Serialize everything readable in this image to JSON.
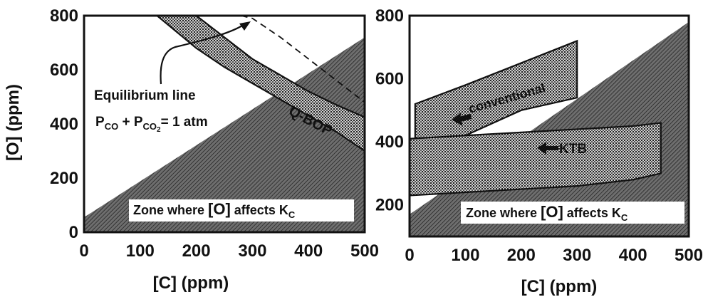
{
  "chart_data": [
    {
      "type": "area",
      "xlabel": "[C] (ppm)",
      "ylabel": "[O] (ppm)",
      "xlim": [
        0,
        500
      ],
      "ylim": [
        0,
        800
      ],
      "xticks": [
        "0",
        "100",
        "200",
        "300",
        "400",
        "500"
      ],
      "yticks": [
        "0",
        "200",
        "400",
        "600",
        "800"
      ],
      "grid": false,
      "zone": {
        "label_pre": "Zone where ",
        "label_bracket": "[O]",
        "label_mid": " affects K",
        "label_sub": "C",
        "x": [
          0,
          500
        ],
        "y": [
          55,
          720
        ]
      },
      "bands": [
        {
          "label": "Q-BOP",
          "x": [
            130,
            200,
            250,
            300,
            350,
            400,
            450,
            500
          ],
          "upper": [
            800,
            800,
            720,
            640,
            580,
            520,
            470,
            425
          ],
          "lower": [
            800,
            680,
            610,
            550,
            490,
            430,
            370,
            300
          ]
        }
      ],
      "lines": [
        {
          "name": "Equilibrium line",
          "style": "dashed",
          "x": [
            280,
            300,
            350,
            400,
            450,
            500
          ],
          "y": [
            800,
            790,
            720,
            640,
            560,
            480
          ]
        }
      ],
      "annotations": {
        "equilibrium_title": "Equilibrium line",
        "eq_p1": "P",
        "eq_co": "CO",
        "eq_plus": " + P",
        "eq_co2_base": "CO",
        "eq_co2_sub": "2",
        "eq_rhs": "= 1 atm"
      }
    },
    {
      "type": "area",
      "xlabel": "[C] (ppm)",
      "ylabel": "",
      "xlim": [
        0,
        500
      ],
      "ylim": [
        100,
        800
      ],
      "xticks": [
        "0",
        "100",
        "200",
        "300",
        "400",
        "500"
      ],
      "yticks": [
        "200",
        "400",
        "600",
        "800"
      ],
      "grid": false,
      "zone": {
        "label_pre": "Zone where ",
        "label_bracket": "[O]",
        "label_mid": " affects K",
        "label_sub": "C",
        "x": [
          0,
          500
        ],
        "y": [
          170,
          780
        ]
      },
      "bands": [
        {
          "label": "conventional",
          "x": [
            10,
            100,
            200,
            300
          ],
          "upper": [
            520,
            580,
            650,
            720
          ],
          "lower": [
            340,
            420,
            500,
            540
          ]
        },
        {
          "label": "KTB",
          "x": [
            0,
            100,
            200,
            300,
            400,
            450
          ],
          "upper": [
            410,
            420,
            430,
            440,
            450,
            460
          ],
          "lower": [
            230,
            240,
            250,
            260,
            280,
            300
          ]
        }
      ]
    }
  ]
}
